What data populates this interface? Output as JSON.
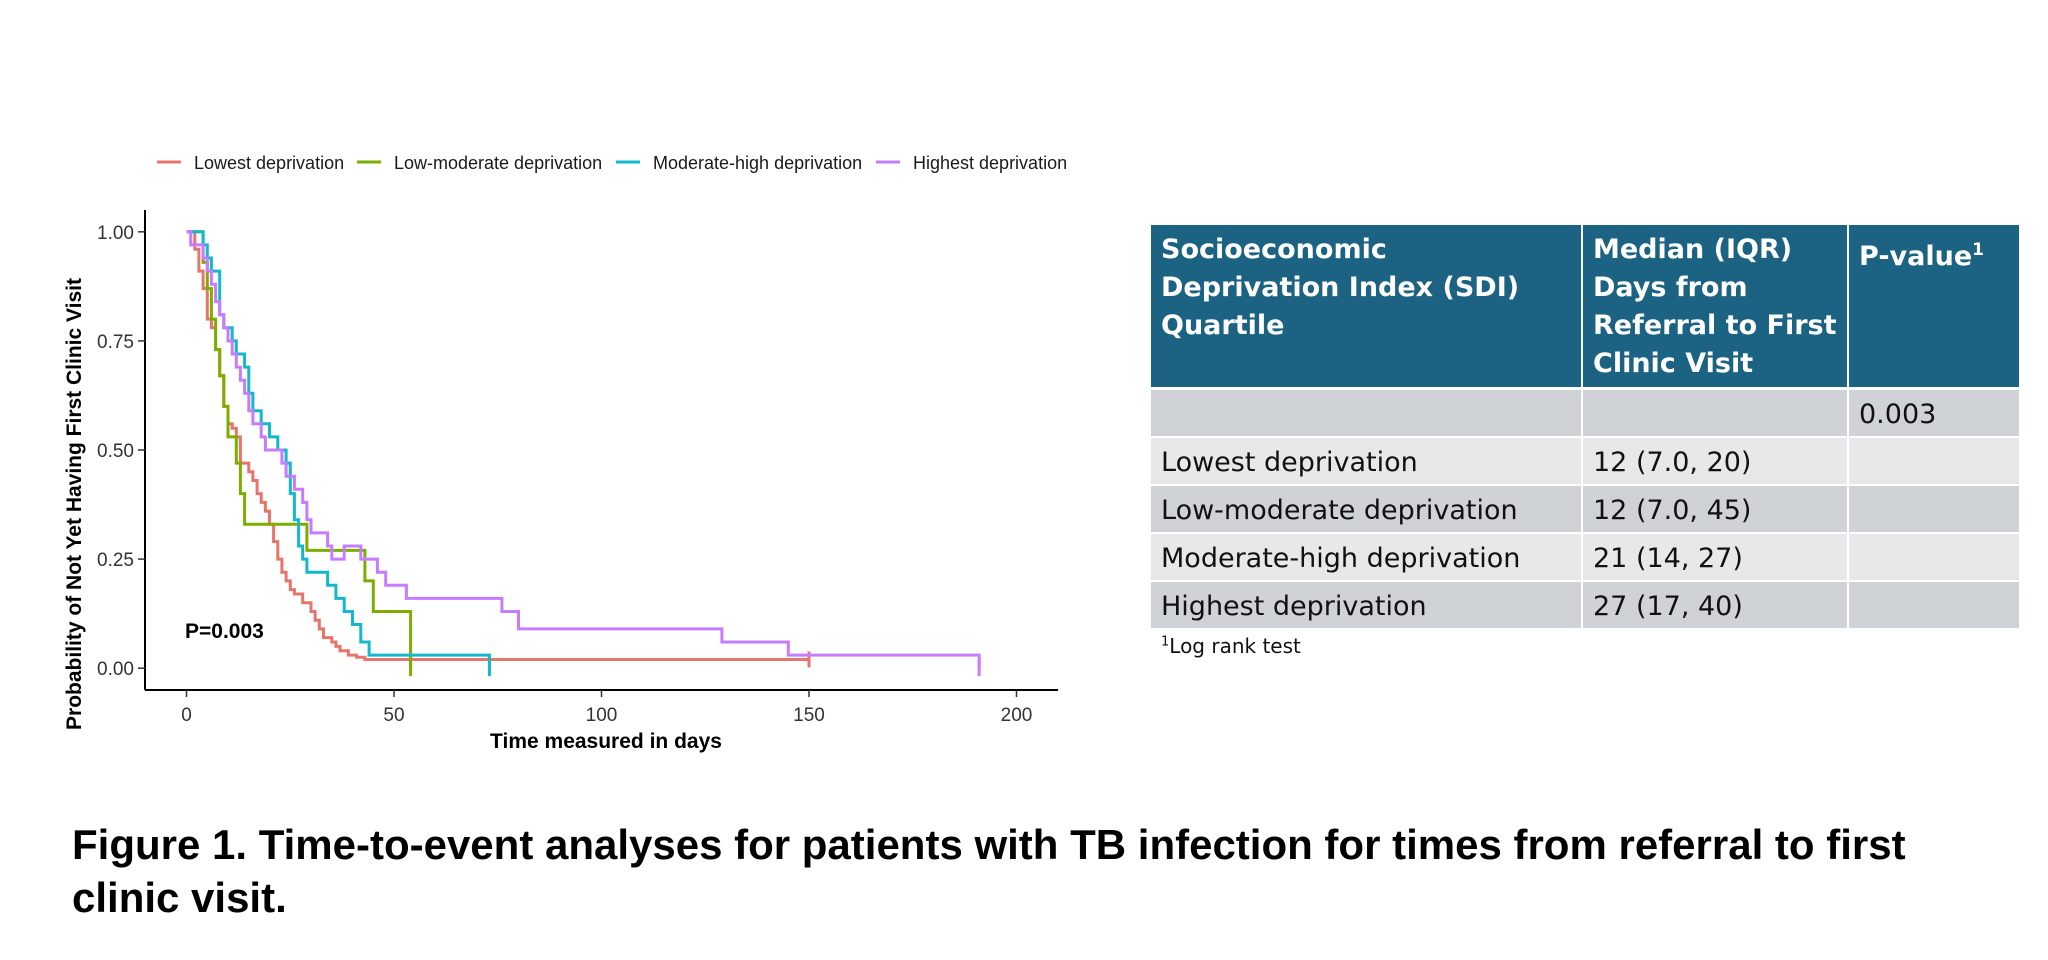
{
  "chart_data": {
    "type": "line",
    "subtype": "kaplan-meier step",
    "xlabel": "Time measured in days",
    "ylabel": "Probability of Not Yet Having First Clinic Visit",
    "xlim": [
      -10,
      210
    ],
    "ylim": [
      -0.05,
      1.05
    ],
    "xticks": [
      0,
      50,
      100,
      150,
      200
    ],
    "xtick_labels": [
      "0",
      "50",
      "100",
      "150",
      "200"
    ],
    "yticks": [
      0,
      0.25,
      0.5,
      0.75,
      1
    ],
    "ytick_labels": [
      "0.00",
      "0.25",
      "0.50",
      "0.75",
      "1.00"
    ],
    "grid": false,
    "legend_position": "top",
    "annotation": "P=0.003",
    "series": [
      {
        "name": "Lowest deprivation",
        "color": "#e8756b",
        "x": [
          0,
          2,
          3,
          4,
          5,
          6,
          7,
          8,
          9,
          10,
          11,
          12,
          13,
          15,
          16,
          17,
          18,
          19,
          20,
          21,
          22,
          23,
          24,
          25,
          26,
          28,
          30,
          31,
          32,
          33,
          35,
          36,
          37,
          39,
          41,
          43,
          150
        ],
        "y": [
          1.0,
          0.96,
          0.91,
          0.87,
          0.8,
          0.78,
          0.73,
          0.67,
          0.6,
          0.56,
          0.55,
          0.53,
          0.47,
          0.45,
          0.43,
          0.4,
          0.38,
          0.36,
          0.33,
          0.29,
          0.25,
          0.22,
          0.2,
          0.18,
          0.17,
          0.15,
          0.13,
          0.11,
          0.09,
          0.07,
          0.06,
          0.05,
          0.04,
          0.03,
          0.025,
          0.02,
          0.02
        ]
      },
      {
        "name": "Low-moderate deprivation",
        "color": "#7cae00",
        "x": [
          0,
          4,
          5,
          6,
          7,
          8,
          9,
          10,
          12,
          13,
          14,
          29,
          30,
          43,
          45,
          54
        ],
        "y": [
          1.0,
          0.93,
          0.87,
          0.8,
          0.73,
          0.67,
          0.6,
          0.53,
          0.47,
          0.4,
          0.33,
          0.27,
          0.27,
          0.2,
          0.13,
          0.0
        ]
      },
      {
        "name": "Moderate-high deprivation",
        "color": "#13b8cc",
        "x": [
          0,
          4,
          5,
          6,
          8,
          9,
          11,
          12,
          14,
          15,
          16,
          18,
          20,
          22,
          24,
          25,
          26,
          27,
          28,
          29,
          34,
          36,
          38,
          40,
          42,
          44,
          73
        ],
        "y": [
          1.0,
          0.97,
          0.94,
          0.91,
          0.81,
          0.78,
          0.75,
          0.72,
          0.69,
          0.63,
          0.59,
          0.56,
          0.53,
          0.5,
          0.47,
          0.4,
          0.34,
          0.28,
          0.25,
          0.22,
          0.19,
          0.16,
          0.13,
          0.1,
          0.06,
          0.03,
          0.0
        ]
      },
      {
        "name": "Highest deprivation",
        "color": "#c77cff",
        "x": [
          0,
          1,
          3,
          4,
          5,
          6,
          7,
          8,
          9,
          10,
          11,
          12,
          13,
          14,
          15,
          16,
          18,
          19,
          20,
          23,
          24,
          26,
          28,
          29,
          30,
          34,
          35,
          37,
          38,
          42,
          46,
          48,
          53,
          56,
          76,
          80,
          129,
          145,
          191
        ],
        "y": [
          1.0,
          0.97,
          0.97,
          0.94,
          0.91,
          0.88,
          0.84,
          0.81,
          0.78,
          0.75,
          0.72,
          0.69,
          0.66,
          0.63,
          0.59,
          0.56,
          0.53,
          0.5,
          0.5,
          0.47,
          0.44,
          0.41,
          0.38,
          0.34,
          0.31,
          0.28,
          0.25,
          0.25,
          0.28,
          0.25,
          0.22,
          0.19,
          0.16,
          0.16,
          0.13,
          0.09,
          0.06,
          0.03,
          0.0
        ]
      }
    ]
  },
  "table": {
    "headers": [
      "Socioeconomic Deprivation Index (SDI) Quartile",
      "Median (IQR) Days from Referral to First Clinic Visit",
      "P-value"
    ],
    "pvalue_footnote_mark": "1",
    "rows": [
      [
        "",
        "",
        "0.003"
      ],
      [
        "Lowest deprivation",
        "12 (7.0, 20)",
        ""
      ],
      [
        "Low-moderate deprivation",
        "12 (7.0, 45)",
        ""
      ],
      [
        "Moderate-high deprivation",
        "21 (14, 27)",
        ""
      ],
      [
        "Highest deprivation",
        "27 (17, 40)",
        ""
      ]
    ],
    "footnote_mark": "1",
    "footnote": "Log rank test"
  },
  "caption": "Figure 1. Time-to-event analyses for patients with TB infection for times from referral to first clinic visit."
}
